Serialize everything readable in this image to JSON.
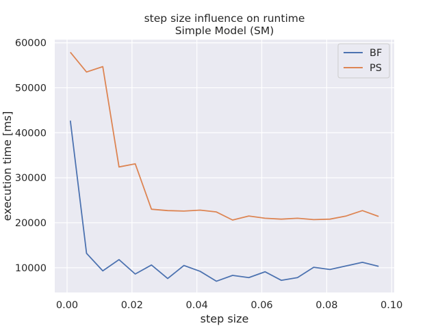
{
  "chart_data": {
    "type": "line",
    "title": "step size influence on runtime",
    "subtitle": "Simple Model (SM)",
    "xlabel": "step size",
    "ylabel": "execution time [ms]",
    "xlim": [
      -0.0038,
      0.1008
    ],
    "ylim": [
      4500,
      60700
    ],
    "grid": true,
    "legend_position": "top-right",
    "x_ticks": [
      0.0,
      0.02,
      0.04,
      0.06,
      0.08,
      0.1
    ],
    "x_tick_labels": [
      "0.00",
      "0.02",
      "0.04",
      "0.06",
      "0.08",
      "0.10"
    ],
    "y_ticks": [
      10000,
      20000,
      30000,
      40000,
      50000,
      60000
    ],
    "y_tick_labels": [
      "10000",
      "20000",
      "30000",
      "40000",
      "50000",
      "60000"
    ],
    "x": [
      0.001,
      0.006,
      0.011,
      0.016,
      0.021,
      0.026,
      0.031,
      0.036,
      0.041,
      0.046,
      0.051,
      0.056,
      0.061,
      0.066,
      0.071,
      0.076,
      0.081,
      0.086,
      0.091,
      0.096
    ],
    "series": [
      {
        "name": "BF",
        "color": "#4c72b0",
        "values": [
          42700,
          13200,
          9300,
          11800,
          8600,
          10600,
          7600,
          10500,
          9200,
          7000,
          8300,
          7800,
          9100,
          7200,
          7800,
          10100,
          9600,
          10400,
          11200,
          10300
        ]
      },
      {
        "name": "PS",
        "color": "#dd8452",
        "values": [
          57900,
          53500,
          54700,
          32400,
          33100,
          23000,
          22700,
          22600,
          22800,
          22400,
          20600,
          21500,
          21000,
          20800,
          21000,
          20700,
          20800,
          21500,
          22700,
          21400
        ]
      }
    ],
    "colors": {
      "plot_background": "#eaeaf2",
      "grid": "#ffffff",
      "text": "#262626"
    }
  }
}
